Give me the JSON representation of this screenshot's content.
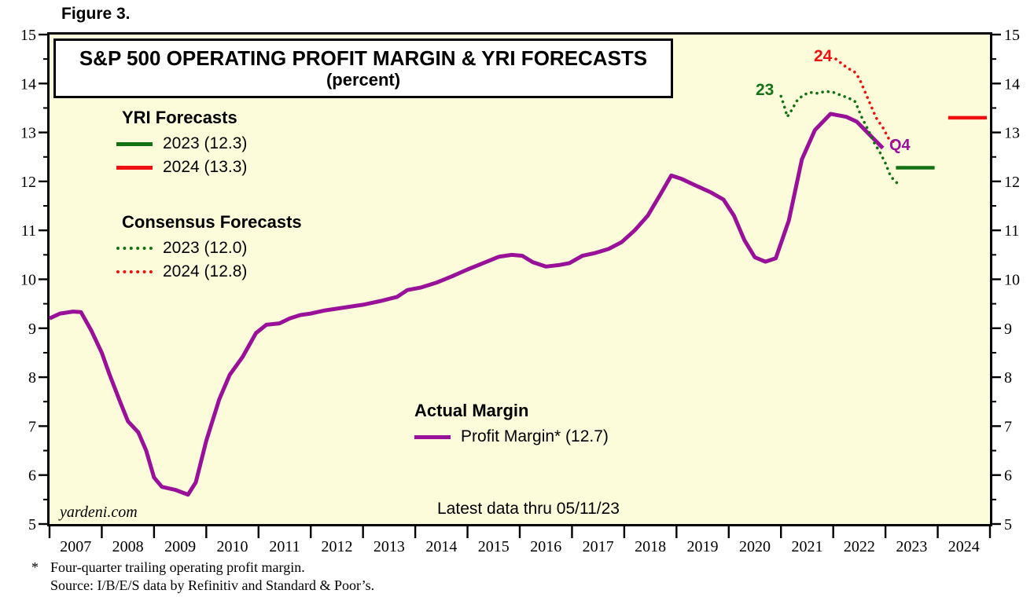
{
  "figure_label": "Figure 3.",
  "title": {
    "line1": "S&P 500 OPERATING PROFIT MARGIN & YRI FORECASTS",
    "line2": "(percent)"
  },
  "legends": {
    "yri": {
      "heading": "YRI Forecasts",
      "items": [
        {
          "label": "2023 (12.3)",
          "color": "#147114",
          "style": "solid",
          "thickness": 5
        },
        {
          "label": "2024 (13.3)",
          "color": "#ee1111",
          "style": "solid",
          "thickness": 5
        }
      ]
    },
    "consensus": {
      "heading": "Consensus Forecasts",
      "items": [
        {
          "label": "2023 (12.0)",
          "color": "#147114",
          "style": "dotted",
          "thickness": 4
        },
        {
          "label": "2024 (12.8)",
          "color": "#ee1111",
          "style": "dotted",
          "thickness": 4
        }
      ]
    },
    "actual": {
      "heading": "Actual Margin",
      "items": [
        {
          "label": "Profit Margin* (12.7)",
          "color": "#991199",
          "style": "solid",
          "thickness": 5
        }
      ]
    }
  },
  "annotations": {
    "consensus_2023_label": "23",
    "consensus_2024_label": "24",
    "latest_quarter_label": "Q4",
    "watermark": "yardeni.com",
    "latest_data_note": "Latest data thru 05/11/23"
  },
  "footnotes": {
    "marker": "*",
    "line1": "Four-quarter trailing operating profit margin.",
    "line2": "Source: I/B/E/S data by Refinitiv and Standard & Poor’s."
  },
  "colors": {
    "actual_purple": "#991199",
    "forecast_green": "#147114",
    "forecast_red": "#ee1111",
    "plot_background": "#FCFCDA",
    "axis_black": "#000000"
  },
  "chart_data": {
    "type": "line",
    "title": "S&P 500 OPERATING PROFIT MARGIN & YRI FORECASTS (percent)",
    "grid": "off",
    "x_axis": {
      "range": [
        2007,
        2025
      ],
      "year_labels": [
        "2007",
        "2008",
        "2009",
        "2010",
        "2011",
        "2012",
        "2013",
        "2014",
        "2015",
        "2016",
        "2017",
        "2018",
        "2019",
        "2020",
        "2021",
        "2022",
        "2023",
        "2024"
      ]
    },
    "y_axis": {
      "range": [
        5,
        15
      ],
      "major_step": 1,
      "minor_step": 0.5,
      "tick_labels": [
        "5",
        "6",
        "7",
        "8",
        "9",
        "10",
        "11",
        "12",
        "13",
        "14",
        "15"
      ],
      "sides": "both"
    },
    "summary_values": {
      "yri_2023": 12.3,
      "yri_2024": 13.3,
      "consensus_2023": 12.0,
      "consensus_2024": 12.8,
      "actual_latest": 12.7
    },
    "series": [
      {
        "name": "Profit Margin (actual, four-quarter trailing)",
        "color": "#991199",
        "style": "solid",
        "width": 5,
        "points": [
          [
            2007.0,
            9.2
          ],
          [
            2007.2,
            9.3
          ],
          [
            2007.45,
            9.34
          ],
          [
            2007.6,
            9.33
          ],
          [
            2007.8,
            8.95
          ],
          [
            2008.0,
            8.5
          ],
          [
            2008.15,
            8.05
          ],
          [
            2008.35,
            7.5
          ],
          [
            2008.5,
            7.1
          ],
          [
            2008.7,
            6.87
          ],
          [
            2008.85,
            6.5
          ],
          [
            2009.0,
            5.95
          ],
          [
            2009.15,
            5.76
          ],
          [
            2009.4,
            5.7
          ],
          [
            2009.65,
            5.6
          ],
          [
            2009.8,
            5.85
          ],
          [
            2010.0,
            6.7
          ],
          [
            2010.25,
            7.55
          ],
          [
            2010.45,
            8.05
          ],
          [
            2010.7,
            8.42
          ],
          [
            2010.95,
            8.9
          ],
          [
            2011.15,
            9.07
          ],
          [
            2011.4,
            9.1
          ],
          [
            2011.6,
            9.2
          ],
          [
            2011.8,
            9.27
          ],
          [
            2012.0,
            9.3
          ],
          [
            2012.25,
            9.36
          ],
          [
            2012.5,
            9.4
          ],
          [
            2012.75,
            9.44
          ],
          [
            2013.0,
            9.48
          ],
          [
            2013.35,
            9.56
          ],
          [
            2013.65,
            9.64
          ],
          [
            2013.85,
            9.78
          ],
          [
            2014.1,
            9.83
          ],
          [
            2014.4,
            9.93
          ],
          [
            2014.7,
            10.06
          ],
          [
            2015.0,
            10.2
          ],
          [
            2015.3,
            10.33
          ],
          [
            2015.6,
            10.46
          ],
          [
            2015.85,
            10.5
          ],
          [
            2016.05,
            10.48
          ],
          [
            2016.25,
            10.35
          ],
          [
            2016.5,
            10.26
          ],
          [
            2016.75,
            10.29
          ],
          [
            2016.95,
            10.33
          ],
          [
            2017.2,
            10.48
          ],
          [
            2017.45,
            10.54
          ],
          [
            2017.7,
            10.62
          ],
          [
            2017.95,
            10.76
          ],
          [
            2018.2,
            11.0
          ],
          [
            2018.45,
            11.3
          ],
          [
            2018.7,
            11.75
          ],
          [
            2018.9,
            12.12
          ],
          [
            2019.1,
            12.05
          ],
          [
            2019.4,
            11.9
          ],
          [
            2019.65,
            11.78
          ],
          [
            2019.9,
            11.63
          ],
          [
            2020.1,
            11.3
          ],
          [
            2020.3,
            10.8
          ],
          [
            2020.5,
            10.45
          ],
          [
            2020.7,
            10.36
          ],
          [
            2020.9,
            10.43
          ],
          [
            2021.15,
            11.2
          ],
          [
            2021.4,
            12.45
          ],
          [
            2021.65,
            13.05
          ],
          [
            2021.95,
            13.38
          ],
          [
            2022.25,
            13.32
          ],
          [
            2022.45,
            13.22
          ],
          [
            2022.7,
            12.95
          ],
          [
            2022.95,
            12.68
          ]
        ]
      },
      {
        "name": "Consensus Forecast 2023",
        "color": "#147114",
        "style": "dotted",
        "width": 3.6,
        "points": [
          [
            2021.0,
            13.74
          ],
          [
            2021.06,
            13.55
          ],
          [
            2021.12,
            13.32
          ],
          [
            2021.2,
            13.45
          ],
          [
            2021.3,
            13.64
          ],
          [
            2021.42,
            13.76
          ],
          [
            2021.55,
            13.82
          ],
          [
            2021.7,
            13.8
          ],
          [
            2021.85,
            13.84
          ],
          [
            2022.0,
            13.82
          ],
          [
            2022.15,
            13.76
          ],
          [
            2022.3,
            13.7
          ],
          [
            2022.42,
            13.63
          ],
          [
            2022.55,
            13.3
          ],
          [
            2022.67,
            13.05
          ],
          [
            2022.78,
            12.8
          ],
          [
            2022.9,
            12.58
          ],
          [
            2023.0,
            12.37
          ],
          [
            2023.1,
            12.1
          ],
          [
            2023.22,
            11.97
          ]
        ]
      },
      {
        "name": "Consensus Forecast 2024",
        "color": "#ee1111",
        "style": "dotted",
        "width": 3.6,
        "points": [
          [
            2022.05,
            14.5
          ],
          [
            2022.17,
            14.4
          ],
          [
            2022.28,
            14.31
          ],
          [
            2022.4,
            14.25
          ],
          [
            2022.5,
            14.1
          ],
          [
            2022.6,
            13.85
          ],
          [
            2022.7,
            13.6
          ],
          [
            2022.82,
            13.3
          ],
          [
            2022.95,
            13.1
          ],
          [
            2023.06,
            12.88
          ],
          [
            2023.17,
            12.8
          ]
        ]
      },
      {
        "name": "YRI Forecast 2023",
        "color": "#147114",
        "style": "solid",
        "width": 4.5,
        "points": [
          [
            2023.2,
            12.28
          ],
          [
            2023.94,
            12.28
          ]
        ]
      },
      {
        "name": "YRI Forecast 2024",
        "color": "#ee1111",
        "style": "solid",
        "width": 4.5,
        "points": [
          [
            2024.2,
            13.3
          ],
          [
            2024.94,
            13.3
          ]
        ]
      }
    ]
  }
}
